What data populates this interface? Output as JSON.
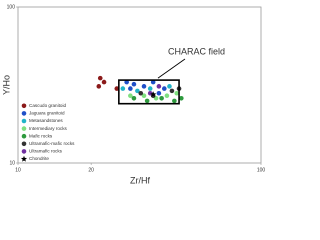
{
  "chart_data": {
    "type": "scatter",
    "xlabel": "Zr/Hf",
    "ylabel": "Y/Ho",
    "xscale": "log",
    "yscale": "log",
    "xlim": [
      10,
      100
    ],
    "ylim": [
      10,
      100
    ],
    "xticks": [
      10,
      20,
      100
    ],
    "yticks": [
      10,
      100
    ],
    "annotation": "CHARAC field",
    "field_box": {
      "x": [
        26,
        46
      ],
      "y": [
        24,
        34
      ]
    },
    "legend": "lower left",
    "series": [
      {
        "name": "Cascudo granitoid",
        "color": "#8b1a1a",
        "marker": "circle",
        "x": [
          21.5,
          22.6,
          21.8,
          25.5
        ],
        "y": [
          31,
          33,
          35,
          30
        ]
      },
      {
        "name": "Jaguara granitoid",
        "color": "#1f4fc8",
        "marker": "circle",
        "x": [
          28,
          30,
          33,
          36,
          29,
          40,
          38
        ],
        "y": [
          33,
          32,
          31,
          33,
          30,
          30,
          28
        ]
      },
      {
        "name": "Metasandstones",
        "color": "#22b4c8",
        "marker": "circle",
        "x": [
          27,
          31,
          35,
          42
        ],
        "y": [
          30,
          29,
          30,
          31
        ]
      },
      {
        "name": "Intermediary rocks",
        "color": "#80e080",
        "marker": "circle",
        "x": [
          29,
          33,
          37,
          41,
          45
        ],
        "y": [
          27,
          27,
          26,
          27,
          28
        ]
      },
      {
        "name": "Mafic rocks",
        "color": "#2e9a3e",
        "marker": "circle",
        "x": [
          30,
          34,
          39,
          44,
          47
        ],
        "y": [
          26,
          25,
          26,
          25,
          26
        ]
      },
      {
        "name": "Ultramafic-mafic rocks",
        "color": "#333333",
        "marker": "circle",
        "x": [
          32,
          43,
          36,
          46
        ],
        "y": [
          28,
          29,
          27,
          30
        ]
      },
      {
        "name": "Ultramafic rocks",
        "color": "#7030a0",
        "marker": "circle",
        "x": [
          38,
          35
        ],
        "y": [
          31,
          28
        ]
      },
      {
        "name": "Chondrite",
        "color": "#000000",
        "marker": "star",
        "x": [
          36
        ],
        "y": [
          27.5
        ]
      }
    ]
  }
}
